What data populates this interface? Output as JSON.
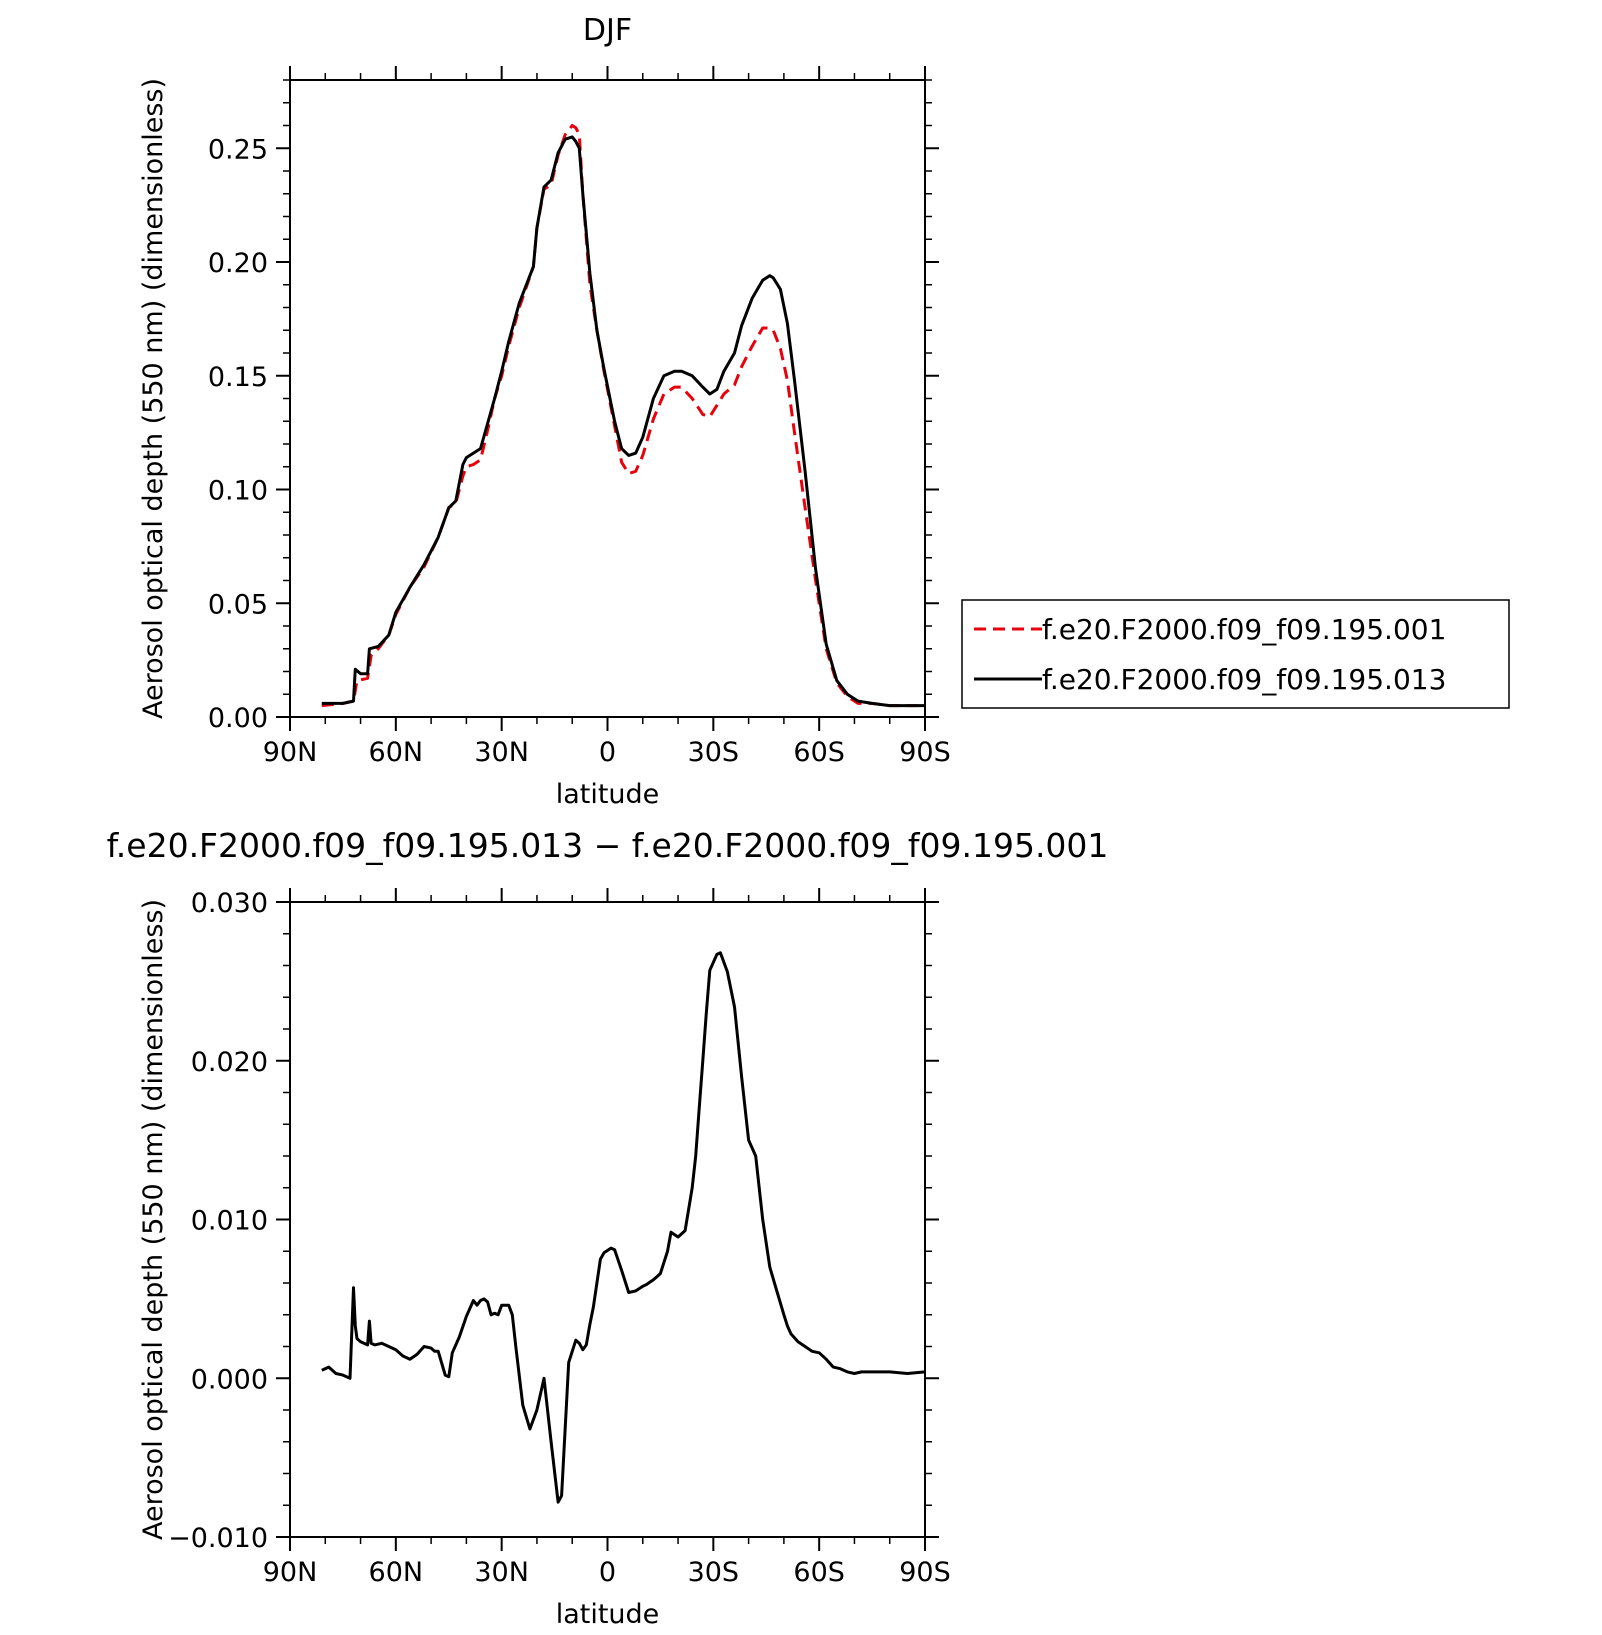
{
  "chart_data": [
    {
      "type": "line",
      "title": "DJF",
      "xlabel": "latitude",
      "ylabel": "Aerosol optical depth (550 nm) (dimensionless)",
      "xlim": [
        90,
        -90
      ],
      "ylim": [
        0,
        0.28
      ],
      "x_ticks": [
        90,
        60,
        30,
        0,
        -30,
        -60,
        -90
      ],
      "x_tick_labels": [
        "90N",
        "60N",
        "30N",
        "0",
        "30S",
        "60S",
        "90S"
      ],
      "y_ticks": [
        0,
        0.05,
        0.1,
        0.15,
        0.2,
        0.25
      ],
      "y_tick_labels": [
        "0.00",
        "0.05",
        "0.10",
        "0.15",
        "0.20",
        "0.25"
      ],
      "legend": "right",
      "series": [
        {
          "name": "f.e20.F2000.f09_f09.195.001",
          "color": "#e8000b",
          "style": "dashed",
          "x": [
            81,
            75,
            72,
            71,
            68,
            67,
            65,
            62,
            60,
            56,
            52,
            48,
            45,
            43,
            41,
            40,
            38,
            36,
            34,
            32,
            30,
            28,
            25,
            21,
            20,
            18,
            16,
            14,
            12,
            10,
            9,
            8,
            7,
            5,
            3,
            1,
            -2,
            -4,
            -6,
            -8,
            -10,
            -13,
            -16,
            -19,
            -21,
            -24,
            -27,
            -29,
            -31,
            -33,
            -36,
            -38,
            -41,
            -44,
            -46,
            -47,
            -49,
            -51,
            -53,
            -56,
            -59,
            -62,
            -65,
            -68,
            -71,
            -75,
            -80,
            -85,
            -90
          ],
          "y": [
            0.005,
            0.006,
            0.007,
            0.016,
            0.017,
            0.027,
            0.03,
            0.036,
            0.045,
            0.057,
            0.066,
            0.079,
            0.092,
            0.094,
            0.106,
            0.11,
            0.111,
            0.113,
            0.126,
            0.14,
            0.15,
            0.163,
            0.18,
            0.198,
            0.215,
            0.232,
            0.234,
            0.247,
            0.256,
            0.26,
            0.259,
            0.256,
            0.23,
            0.19,
            0.17,
            0.152,
            0.128,
            0.112,
            0.107,
            0.108,
            0.115,
            0.131,
            0.142,
            0.145,
            0.145,
            0.14,
            0.133,
            0.132,
            0.137,
            0.142,
            0.146,
            0.154,
            0.163,
            0.171,
            0.171,
            0.17,
            0.162,
            0.148,
            0.125,
            0.092,
            0.06,
            0.03,
            0.015,
            0.009,
            0.006,
            0.006,
            0.005,
            0.005,
            0.005
          ]
        },
        {
          "name": "f.e20.F2000.f09_f09.195.013",
          "color": "#000000",
          "style": "solid",
          "x": [
            81,
            75,
            72,
            71.5,
            70,
            68,
            67.5,
            65,
            62,
            60,
            56,
            52,
            48,
            45,
            43,
            41,
            40,
            38,
            36,
            34,
            32,
            30,
            28,
            25,
            21,
            20,
            18,
            16,
            14,
            12,
            10,
            9,
            8,
            7,
            5,
            3,
            1,
            -2,
            -4,
            -6,
            -8,
            -10,
            -13,
            -16,
            -19,
            -21,
            -24,
            -27,
            -29,
            -31,
            -33,
            -36,
            -38,
            -41,
            -44,
            -46,
            -47,
            -49,
            -51,
            -53,
            -56,
            -59,
            -62,
            -65,
            -68,
            -71,
            -75,
            -80,
            -85,
            -90
          ],
          "y": [
            0.006,
            0.006,
            0.007,
            0.021,
            0.019,
            0.019,
            0.03,
            0.031,
            0.036,
            0.046,
            0.057,
            0.067,
            0.079,
            0.092,
            0.095,
            0.111,
            0.114,
            0.116,
            0.118,
            0.129,
            0.14,
            0.152,
            0.165,
            0.182,
            0.198,
            0.215,
            0.233,
            0.236,
            0.248,
            0.254,
            0.255,
            0.253,
            0.25,
            0.23,
            0.195,
            0.17,
            0.153,
            0.13,
            0.118,
            0.115,
            0.116,
            0.123,
            0.14,
            0.15,
            0.152,
            0.152,
            0.15,
            0.145,
            0.142,
            0.144,
            0.152,
            0.16,
            0.172,
            0.184,
            0.192,
            0.194,
            0.193,
            0.188,
            0.173,
            0.148,
            0.108,
            0.065,
            0.032,
            0.016,
            0.01,
            0.007,
            0.006,
            0.005,
            0.005,
            0.005
          ]
        }
      ]
    },
    {
      "type": "line",
      "title": "f.e20.F2000.f09_f09.195.013 - f.e20.F2000.f09_f09.195.001",
      "xlabel": "latitude",
      "ylabel": "Aerosol optical depth (550 nm) (dimensionless)",
      "xlim": [
        90,
        -90
      ],
      "ylim": [
        -0.01,
        0.03
      ],
      "x_ticks": [
        90,
        60,
        30,
        0,
        -30,
        -60,
        -90
      ],
      "x_tick_labels": [
        "90N",
        "60N",
        "30N",
        "0",
        "30S",
        "60S",
        "90S"
      ],
      "y_ticks": [
        -0.01,
        0,
        0.01,
        0.02,
        0.03
      ],
      "y_tick_labels": [
        "-0.010",
        "0.000",
        "0.010",
        "0.020",
        "0.030"
      ],
      "series": [
        {
          "color": "#000000",
          "style": "solid",
          "x": [
            81,
            79,
            77,
            75,
            73,
            72,
            71.5,
            71,
            70,
            68,
            67.5,
            67,
            66,
            64,
            62,
            60,
            58,
            56,
            54,
            52,
            50,
            49,
            48,
            46,
            45,
            44,
            42,
            40,
            38,
            37,
            36,
            35,
            34,
            33,
            32,
            31,
            30,
            28,
            27,
            26,
            24,
            22,
            20,
            18,
            16,
            14,
            13,
            11,
            9,
            8,
            7,
            6,
            5,
            4,
            3,
            2,
            1,
            -1,
            -2,
            -4,
            -6,
            -8,
            -10,
            -11,
            -13,
            -14,
            -15,
            -17,
            -18,
            -20,
            -22,
            -24,
            -25,
            -26,
            -27,
            -28,
            -29,
            -31,
            -32,
            -34,
            -36,
            -38,
            -40,
            -42,
            -43,
            -44,
            -46,
            -48,
            -50,
            -51,
            -52,
            -54,
            -56,
            -58,
            -60,
            -62,
            -64,
            -66,
            -68,
            -70,
            -72,
            -75,
            -80,
            -85,
            -90
          ],
          "y": [
            0.0005,
            0.0007,
            0.0003,
            0.0002,
            0.0,
            0.0057,
            0.0033,
            0.0025,
            0.0023,
            0.0021,
            0.0036,
            0.0022,
            0.0021,
            0.0022,
            0.002,
            0.0018,
            0.0014,
            0.0012,
            0.0015,
            0.002,
            0.0019,
            0.0017,
            0.0017,
            0.0002,
            0.0001,
            0.0016,
            0.0026,
            0.0039,
            0.0049,
            0.0046,
            0.0049,
            0.005,
            0.0048,
            0.004,
            0.0041,
            0.004,
            0.0046,
            0.0046,
            0.004,
            0.002,
            -0.0017,
            -0.0032,
            -0.002,
            0.0,
            -0.004,
            -0.0078,
            -0.0074,
            0.001,
            0.0024,
            0.0022,
            0.0018,
            0.0021,
            0.0034,
            0.0045,
            0.006,
            0.0075,
            0.0079,
            0.0082,
            0.0081,
            0.0068,
            0.0054,
            0.0055,
            0.0058,
            0.0059,
            0.0062,
            0.0064,
            0.0066,
            0.008,
            0.0092,
            0.0089,
            0.0093,
            0.012,
            0.014,
            0.017,
            0.02,
            0.023,
            0.0257,
            0.0267,
            0.0268,
            0.0256,
            0.0234,
            0.019,
            0.015,
            0.014,
            0.012,
            0.01,
            0.007,
            0.0055,
            0.004,
            0.0033,
            0.0028,
            0.0023,
            0.002,
            0.0017,
            0.0016,
            0.0012,
            0.0007,
            0.0006,
            0.0004,
            0.0003,
            0.0004,
            0.0004,
            0.0004,
            0.0003,
            0.0004
          ]
        }
      ]
    }
  ]
}
